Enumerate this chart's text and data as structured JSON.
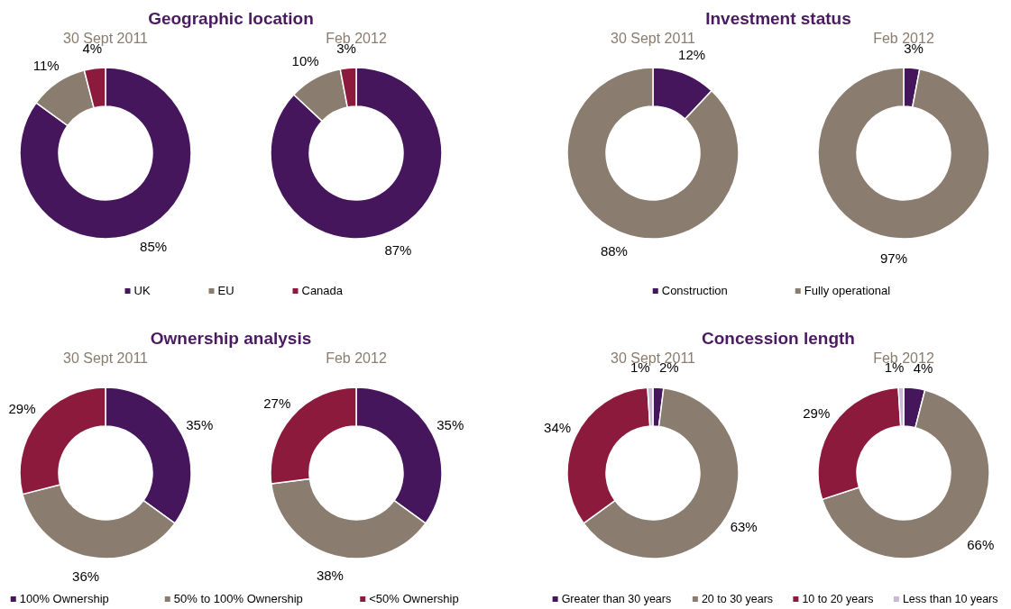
{
  "chart_data": [
    {
      "type": "donut",
      "title": "Geographic location",
      "subtitle": "30 Sept 2011",
      "categories": [
        "UK",
        "EU",
        "Canada"
      ],
      "values": [
        85,
        11,
        4
      ],
      "value_labels": [
        "85%",
        "11%",
        "4%"
      ],
      "colors": [
        "#45165c",
        "#8a7c6e",
        "#8c1a3c"
      ],
      "legend": "bottom"
    },
    {
      "type": "donut",
      "subtitle": "Feb 2012",
      "categories": [
        null,
        null,
        null
      ],
      "values": [
        87,
        10,
        3
      ],
      "value_labels": [
        "87%",
        "10%",
        "3%"
      ],
      "colors": [
        "#45165c",
        "#8a7c6e",
        "#8c1a3c"
      ]
    },
    {
      "type": "donut",
      "title": "Investment status",
      "subtitle": "30 Sept 2011",
      "categories": [
        "Construction",
        "Fully operational"
      ],
      "values": [
        12,
        88
      ],
      "value_labels": [
        "12%",
        "88%"
      ],
      "colors": [
        "#45165c",
        "#8a7c6e"
      ],
      "legend": "bottom"
    },
    {
      "type": "donut",
      "subtitle": "Feb 2012",
      "categories": [
        null,
        null
      ],
      "values": [
        3,
        97
      ],
      "value_labels": [
        "3%",
        "97%"
      ],
      "colors": [
        "#45165c",
        "#8a7c6e"
      ]
    },
    {
      "type": "donut",
      "title": "Ownership analysis",
      "subtitle": "30 Sept 2011",
      "categories": [
        "100% Ownership",
        "50% to 100% Ownership",
        "<50% Ownership"
      ],
      "values": [
        35,
        36,
        29
      ],
      "value_labels": [
        "35%",
        "36%",
        "29%"
      ],
      "colors": [
        "#45165c",
        "#8a7c6e",
        "#8c1a3c"
      ],
      "legend": "bottom"
    },
    {
      "type": "donut",
      "subtitle": "Feb 2012",
      "categories": [
        null,
        null,
        null
      ],
      "values": [
        35,
        38,
        27
      ],
      "value_labels": [
        "35%",
        "38%",
        "27%"
      ],
      "colors": [
        "#45165c",
        "#8a7c6e",
        "#8c1a3c"
      ]
    },
    {
      "type": "donut",
      "title": "Concession length",
      "subtitle": "30 Sept 2011",
      "categories": [
        "Greater than 30 years",
        "20 to 30 years",
        "10 to 20 years",
        "Less than 10 years"
      ],
      "values": [
        2,
        63,
        34,
        1
      ],
      "value_labels": [
        "2%",
        "63%",
        "34%",
        "1%"
      ],
      "colors": [
        "#45165c",
        "#8a7c6e",
        "#8c1a3c",
        "#c9b8d6"
      ],
      "legend": "bottom"
    },
    {
      "type": "donut",
      "subtitle": "Feb 2012",
      "categories": [
        null,
        null,
        null,
        null
      ],
      "values": [
        4,
        66,
        29,
        1
      ],
      "value_labels": [
        "4%",
        "66%",
        "29%",
        "1%"
      ],
      "colors": [
        "#45165c",
        "#8a7c6e",
        "#8c1a3c",
        "#c9b8d6"
      ]
    }
  ]
}
